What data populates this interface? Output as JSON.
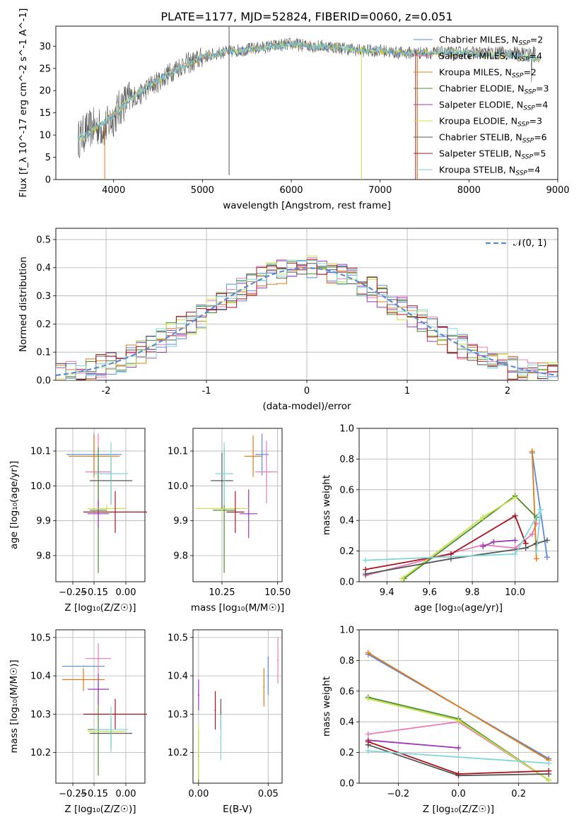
{
  "figure": {
    "title": "PLATE=1177, MJD=52824, FIBERID=0060, z=0.051"
  },
  "colors": {
    "Chabrier MILES": "#5b8ad6",
    "Salpeter MILES": "#e87bb7",
    "Kroupa MILES": "#e07b1a",
    "Chabrier ELODIE": "#4b8c2e",
    "Salpeter ELODIE": "#9b36b4",
    "Kroupa ELODIE": "#c8e04a",
    "Chabrier STELIB": "#555555",
    "Salpeter STELIB": "#a8141e",
    "Kroupa STELIB": "#7fd6da"
  },
  "chart_data": [
    {
      "id": "spectrum",
      "type": "line",
      "xlabel": "wavelength [Angstrom, rest frame]",
      "ylabel": "Flux [f_λ 10^-17 erg cm^-2 s^-1 A^-1]",
      "xlim": [
        3350,
        9000
      ],
      "ylim": [
        0,
        34.5
      ],
      "xticks": [
        4000,
        5000,
        6000,
        7000,
        8000,
        9000
      ],
      "yticks": [
        0,
        5,
        10,
        15,
        20,
        25,
        30
      ],
      "grid": false,
      "legend": {
        "position": "right",
        "entries": [
          {
            "label": "Chabrier MILES, N",
            "sub": "SSP",
            "suffix": "=2",
            "color": "#5b8ad6"
          },
          {
            "label": "Salpeter MILES, N",
            "sub": "SSP",
            "suffix": "=4",
            "color": "#e87bb7"
          },
          {
            "label": "Kroupa MILES, N",
            "sub": "SSP",
            "suffix": "=2",
            "color": "#e07b1a"
          },
          {
            "label": "Chabrier ELODIE, N",
            "sub": "SSP",
            "suffix": "=3",
            "color": "#4b8c2e"
          },
          {
            "label": "Salpeter ELODIE, N",
            "sub": "SSP",
            "suffix": "=4",
            "color": "#9b36b4"
          },
          {
            "label": "Kroupa ELODIE, N",
            "sub": "SSP",
            "suffix": "=3",
            "color": "#c8e04a"
          },
          {
            "label": "Chabrier STELIB, N",
            "sub": "SSP",
            "suffix": "=6",
            "color": "#555555"
          },
          {
            "label": "Salpeter STELIB, N",
            "sub": "SSP",
            "suffix": "=5",
            "color": "#a8141e"
          },
          {
            "label": "Kroupa STELIB, N",
            "sub": "SSP",
            "suffix": "=4",
            "color": "#7fd6da"
          }
        ]
      },
      "continuum_x": [
        3600,
        3700,
        3800,
        3900,
        4000,
        4100,
        4200,
        4300,
        4400,
        4500,
        4600,
        4700,
        4800,
        4900,
        5000,
        5200,
        5400,
        5600,
        5800,
        6000,
        6200,
        6400,
        6600,
        6800,
        7000,
        7200,
        7400
      ],
      "continuum_y": [
        9,
        11,
        12,
        11.5,
        14,
        17,
        18.5,
        19,
        21,
        22,
        23.5,
        25,
        26,
        26.5,
        27.5,
        28.5,
        29,
        29.5,
        30,
        30.5,
        30,
        30,
        29.5,
        29,
        29,
        28.5,
        28.5
      ],
      "model_x": [
        3600,
        3800,
        4000,
        4200,
        4400,
        4600,
        4800,
        5000,
        5200,
        5400,
        5600,
        5800,
        6000,
        6200,
        6400,
        6600,
        6800,
        7000,
        7200,
        7400,
        7600,
        7800,
        8000,
        8200,
        8400,
        8600,
        8800
      ],
      "model_y": [
        9,
        11.5,
        14.5,
        18.5,
        21,
        23.5,
        25.5,
        27.5,
        28.5,
        29,
        29.5,
        30,
        30.5,
        30,
        30,
        29.5,
        29,
        29,
        28.5,
        28.5,
        28.5,
        28.5,
        28.5,
        28,
        28,
        27.5,
        27
      ],
      "spikes": [
        {
          "x": 3900,
          "y0": 0,
          "y1": 12,
          "color": "#e07b1a"
        },
        {
          "x": 5300,
          "y0": 1,
          "y1": 40,
          "color": "#555555"
        },
        {
          "x": 6790,
          "y0": 0,
          "y1": 30,
          "color": "#c8e04a"
        },
        {
          "x": 7420,
          "y0": 0,
          "y1": 29,
          "color": "#e07b1a"
        },
        {
          "x": 7400,
          "y0": 0,
          "y1": 29,
          "color": "#a8141e"
        }
      ]
    },
    {
      "id": "residuals",
      "type": "histogram",
      "xlabel": "(data-model)/error",
      "ylabel": "Normed distribution",
      "xlim": [
        -2.5,
        2.5
      ],
      "ylim": [
        0,
        0.54
      ],
      "xticks": [
        -2,
        -1,
        0,
        1,
        2
      ],
      "yticks": [
        0.0,
        0.1,
        0.2,
        0.3,
        0.4,
        0.5
      ],
      "grid": true,
      "legend": {
        "position": "top-right",
        "label": "𝒩(0, 1)"
      },
      "reference_curve": {
        "name": "𝒩(0, 1)",
        "mean": 0,
        "sigma": 1,
        "color": "#5b8ad6",
        "style": "dashed"
      },
      "bin_width": 0.1
    },
    {
      "id": "Z-age",
      "type": "errorbar",
      "xlabel": "Z [log₁₀(Z/Z☉)]",
      "ylabel": "age  [log₁₀(age/yr)]",
      "xlim": [
        -0.33,
        0.09
      ],
      "ylim": [
        9.725,
        10.165
      ],
      "xticks": [
        -0.25,
        -0.15,
        0.0
      ],
      "xticklabels": [
        "−0.25",
        "−0.15",
        "0.00"
      ],
      "yticks": [
        9.8,
        9.9,
        10.0,
        10.1
      ],
      "grid": true,
      "points": [
        {
          "model": "Chabrier MILES",
          "x": -0.15,
          "xerr": 0.13,
          "y": 10.09,
          "yerr": 0.06
        },
        {
          "model": "Salpeter MILES",
          "x": -0.13,
          "xerr": 0.06,
          "y": 10.04,
          "yerr": 0.11
        },
        {
          "model": "Kroupa MILES",
          "x": -0.15,
          "xerr": 0.12,
          "y": 10.085,
          "yerr": 0.06
        },
        {
          "model": "Chabrier ELODIE",
          "x": -0.13,
          "xerr": 0.04,
          "y": 9.93,
          "yerr": 0.18
        },
        {
          "model": "Salpeter ELODIE",
          "x": -0.13,
          "xerr": 0.05,
          "y": 9.92,
          "yerr": 0.04
        },
        {
          "model": "Kroupa ELODIE",
          "x": -0.09,
          "xerr": 0.09,
          "y": 9.935,
          "yerr": 0.01
        },
        {
          "model": "Chabrier STELIB",
          "x": -0.07,
          "xerr": 0.1,
          "y": 10.015,
          "yerr": 0.07
        },
        {
          "model": "Salpeter STELIB",
          "x": -0.05,
          "xerr": 0.15,
          "y": 9.925,
          "yerr": 0.06
        },
        {
          "model": "Kroupa STELIB",
          "x": -0.07,
          "xerr": 0.08,
          "y": 10.035,
          "yerr": 0.09
        }
      ]
    },
    {
      "id": "mass-age",
      "type": "errorbar",
      "xlabel": "mass [log₁₀(M/M☉)]",
      "ylabel": "",
      "xlim": [
        10.12,
        10.52
      ],
      "ylim": [
        9.725,
        10.165
      ],
      "xticks": [
        10.25,
        10.5
      ],
      "xticklabels": [
        "10.25",
        "10.50"
      ],
      "yticks": [
        9.8,
        9.9,
        10.0,
        10.1
      ],
      "grid": true,
      "points": [
        {
          "model": "Chabrier MILES",
          "x": 10.43,
          "xerr": 0.03,
          "y": 10.09,
          "yerr": 0.06
        },
        {
          "model": "Salpeter MILES",
          "x": 10.45,
          "xerr": 0.05,
          "y": 10.04,
          "yerr": 0.09
        },
        {
          "model": "Kroupa MILES",
          "x": 10.39,
          "xerr": 0.04,
          "y": 10.085,
          "yerr": 0.06
        },
        {
          "model": "Chabrier ELODIE",
          "x": 10.26,
          "xerr": 0.05,
          "y": 9.93,
          "yerr": 0.18
        },
        {
          "model": "Salpeter ELODIE",
          "x": 10.37,
          "xerr": 0.04,
          "y": 9.92,
          "yerr": 0.07
        },
        {
          "model": "Kroupa ELODIE",
          "x": 10.25,
          "xerr": 0.12,
          "y": 9.935,
          "yerr": 0.01
        },
        {
          "model": "Chabrier STELIB",
          "x": 10.25,
          "xerr": 0.05,
          "y": 10.015,
          "yerr": 0.08
        },
        {
          "model": "Salpeter STELIB",
          "x": 10.31,
          "xerr": 0.04,
          "y": 9.925,
          "yerr": 0.06
        },
        {
          "model": "Kroupa STELIB",
          "x": 10.26,
          "xerr": 0.04,
          "y": 10.035,
          "yerr": 0.09
        }
      ]
    },
    {
      "id": "age-weight",
      "type": "line",
      "xlabel": "age  [log₁₀(age/yr)]",
      "ylabel": "mass weight",
      "xlim": [
        9.27,
        10.2
      ],
      "ylim": [
        0,
        1.0
      ],
      "xticks": [
        9.4,
        9.6,
        9.8,
        10.0
      ],
      "xticklabels": [
        "9.4",
        "9.6",
        "9.8",
        "10.0"
      ],
      "yticks": [
        0.0,
        0.2,
        0.4,
        0.6,
        0.8,
        1.0
      ],
      "grid": true,
      "series": [
        {
          "model": "Chabrier MILES",
          "x": [
            10.08,
            10.15
          ],
          "y": [
            0.84,
            0.16
          ]
        },
        {
          "model": "Salpeter MILES",
          "x": [
            9.3,
            9.85,
            10.0,
            10.08,
            10.1
          ],
          "y": [
            0.04,
            0.24,
            0.22,
            0.31,
            0.38
          ]
        },
        {
          "model": "Kroupa MILES",
          "x": [
            10.08,
            10.1
          ],
          "y": [
            0.85,
            0.15
          ]
        },
        {
          "model": "Chabrier ELODIE",
          "x": [
            9.48,
            10.0,
            10.1
          ],
          "y": [
            0.02,
            0.56,
            0.42
          ]
        },
        {
          "model": "Salpeter ELODIE",
          "x": [
            9.85,
            9.9,
            10.0
          ],
          "y": [
            0.23,
            0.26,
            0.27
          ]
        },
        {
          "model": "Kroupa ELODIE",
          "x": [
            9.47,
            9.85,
            10.0
          ],
          "y": [
            0.02,
            0.42,
            0.55
          ]
        },
        {
          "model": "Chabrier STELIB",
          "x": [
            9.3,
            9.7,
            10.05,
            10.1,
            10.15
          ],
          "y": [
            0.05,
            0.15,
            0.22,
            0.25,
            0.27
          ]
        },
        {
          "model": "Salpeter STELIB",
          "x": [
            9.3,
            9.7,
            10.0,
            10.05
          ],
          "y": [
            0.08,
            0.18,
            0.43,
            0.25
          ]
        },
        {
          "model": "Kroupa STELIB",
          "x": [
            9.3,
            10.0,
            10.12,
            10.1
          ],
          "y": [
            0.14,
            0.18,
            0.47,
            0.2
          ]
        }
      ]
    },
    {
      "id": "Z-mass",
      "type": "errorbar",
      "xlabel": "Z [log₁₀(Z/Z☉)]",
      "ylabel": "mass [log₁₀(M/M☉)]",
      "xlim": [
        -0.33,
        0.09
      ],
      "ylim": [
        10.12,
        10.52
      ],
      "xticks": [
        -0.25,
        -0.15,
        0.0
      ],
      "xticklabels": [
        "−0.25",
        "−0.15",
        "0.00"
      ],
      "yticks": [
        10.2,
        10.3,
        10.4,
        10.5
      ],
      "grid": true,
      "points": [
        {
          "model": "Chabrier MILES",
          "x": -0.2,
          "xerr": 0.1,
          "y": 10.425,
          "yerr": 0.0
        },
        {
          "model": "Salpeter MILES",
          "x": -0.13,
          "xerr": 0.06,
          "y": 10.445,
          "yerr": 0.04
        },
        {
          "model": "Kroupa MILES",
          "x": -0.2,
          "xerr": 0.1,
          "y": 10.39,
          "yerr": 0.03
        },
        {
          "model": "Chabrier ELODIE",
          "x": -0.13,
          "xerr": 0.05,
          "y": 10.26,
          "yerr": 0.12
        },
        {
          "model": "Salpeter ELODIE",
          "x": -0.13,
          "xerr": 0.05,
          "y": 10.365,
          "yerr": 0.04
        },
        {
          "model": "Kroupa ELODIE",
          "x": -0.09,
          "xerr": 0.09,
          "y": 10.255,
          "yerr": 0.0
        },
        {
          "model": "Chabrier STELIB",
          "x": -0.07,
          "xerr": 0.1,
          "y": 10.25,
          "yerr": 0.04
        },
        {
          "model": "Salpeter STELIB",
          "x": -0.05,
          "xerr": 0.15,
          "y": 10.3,
          "yerr": 0.04
        },
        {
          "model": "Kroupa STELIB",
          "x": -0.07,
          "xerr": 0.08,
          "y": 10.26,
          "yerr": 0.06
        }
      ]
    },
    {
      "id": "EBV-mass",
      "type": "errorbar",
      "xlabel": "E(B-V)",
      "ylabel": "",
      "xlim": [
        -0.004,
        0.06
      ],
      "ylim": [
        10.12,
        10.52
      ],
      "xticks": [
        0.0,
        0.05
      ],
      "xticklabels": [
        "0.00",
        "0.05"
      ],
      "yticks": [
        10.2,
        10.3,
        10.4,
        10.5
      ],
      "grid": true,
      "points": [
        {
          "model": "Chabrier MILES",
          "x": 0.05,
          "xerr": 0,
          "y": 10.4,
          "yerr": 0.05
        },
        {
          "model": "Salpeter MILES",
          "x": 0.057,
          "xerr": 0,
          "y": 10.44,
          "yerr": 0.06
        },
        {
          "model": "Kroupa MILES",
          "x": 0.047,
          "xerr": 0,
          "y": 10.37,
          "yerr": 0.05
        },
        {
          "model": "Chabrier ELODIE",
          "x": 0.0,
          "xerr": 0,
          "y": 10.19,
          "yerr": 0.07
        },
        {
          "model": "Salpeter ELODIE",
          "x": 0.0,
          "xerr": 0,
          "y": 10.35,
          "yerr": 0.04
        },
        {
          "model": "Kroupa ELODIE",
          "x": 0.0,
          "xerr": 0,
          "y": 10.2,
          "yerr": 0.07
        },
        {
          "model": "Chabrier STELIB",
          "x": 0.016,
          "xerr": 0,
          "y": 10.3,
          "yerr": 0.04
        },
        {
          "model": "Salpeter STELIB",
          "x": 0.012,
          "xerr": 0,
          "y": 10.31,
          "yerr": 0.05
        },
        {
          "model": "Kroupa STELIB",
          "x": 0.016,
          "xerr": 0,
          "y": 10.24,
          "yerr": 0.06
        }
      ]
    },
    {
      "id": "Z-weight",
      "type": "line",
      "xlabel": "Z [log₁₀(Z/Z☉)]",
      "ylabel": "mass weight",
      "xlim": [
        -0.33,
        0.33
      ],
      "ylim": [
        0,
        1.0
      ],
      "xticks": [
        -0.2,
        0.0,
        0.2
      ],
      "xticklabels": [
        "−0.2",
        "0.0",
        "0.2"
      ],
      "yticks": [
        0.0,
        0.2,
        0.4,
        0.6,
        0.8,
        1.0
      ],
      "grid": true,
      "series": [
        {
          "model": "Chabrier MILES",
          "x": [
            -0.3,
            0.3
          ],
          "y": [
            0.84,
            0.16
          ]
        },
        {
          "model": "Salpeter MILES",
          "x": [
            -0.3,
            0.0,
            0.3
          ],
          "y": [
            0.32,
            0.4,
            0.02
          ]
        },
        {
          "model": "Kroupa MILES",
          "x": [
            -0.3,
            0.3
          ],
          "y": [
            0.85,
            0.15
          ]
        },
        {
          "model": "Chabrier ELODIE",
          "x": [
            -0.3,
            0.0,
            0.3
          ],
          "y": [
            0.56,
            0.42,
            0.02
          ]
        },
        {
          "model": "Salpeter ELODIE",
          "x": [
            -0.3,
            0.0
          ],
          "y": [
            0.28,
            0.23
          ]
        },
        {
          "model": "Kroupa ELODIE",
          "x": [
            -0.3,
            0.0,
            0.3
          ],
          "y": [
            0.55,
            0.41,
            0.02
          ]
        },
        {
          "model": "Chabrier STELIB",
          "x": [
            -0.3,
            0.0,
            0.3
          ],
          "y": [
            0.25,
            0.05,
            0.06
          ]
        },
        {
          "model": "Salpeter STELIB",
          "x": [
            -0.3,
            0.0,
            0.3
          ],
          "y": [
            0.27,
            0.06,
            0.08
          ]
        },
        {
          "model": "Kroupa STELIB",
          "x": [
            -0.3,
            0.3
          ],
          "y": [
            0.21,
            0.13
          ]
        }
      ]
    }
  ]
}
